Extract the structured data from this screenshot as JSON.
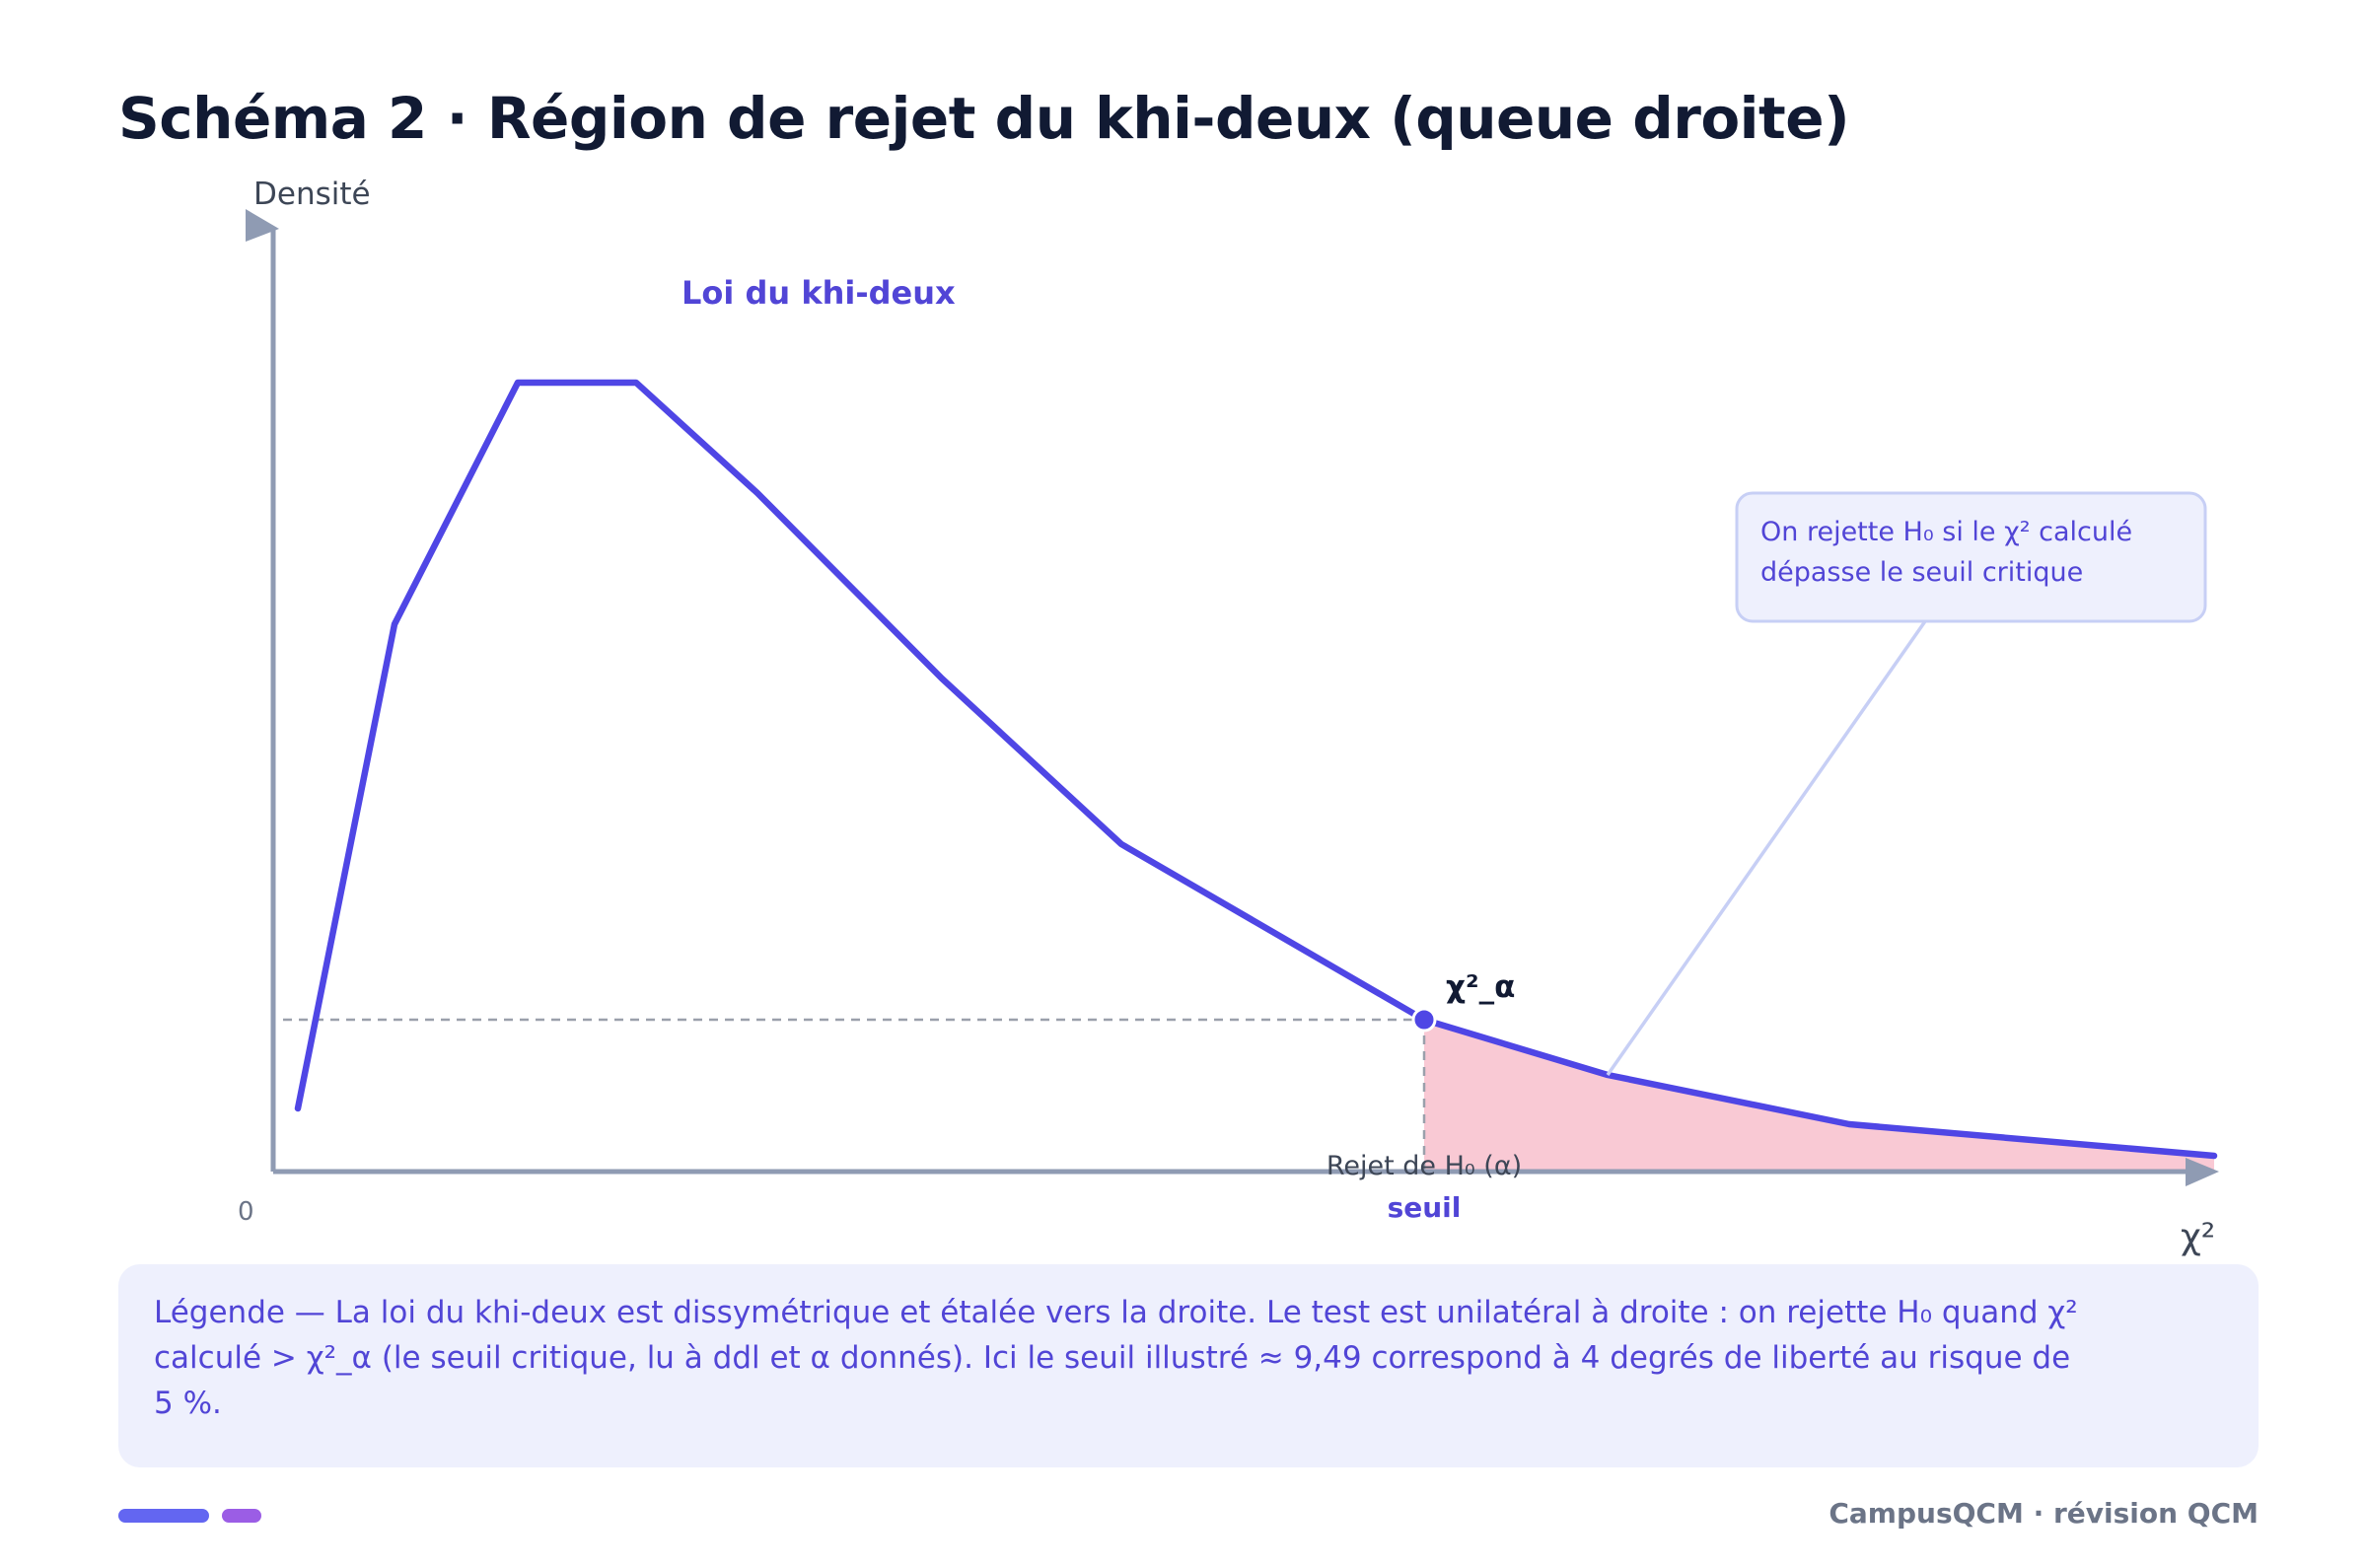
{
  "title": "Schéma 2 · Région de rejet du khi-deux (queue droite)",
  "axes": {
    "y_label": "Densité",
    "x_label": "χ²",
    "origin": "0"
  },
  "curve_label": "Loi du khi-deux",
  "critical": {
    "label": "χ²_α",
    "seuil": "seuil",
    "region": "Rejet de H₀ (α)"
  },
  "callout": {
    "line1": "On rejette H₀ si le χ² calculé",
    "line2": "dépasse le seuil critique"
  },
  "legend": "Légende — La loi du khi-deux est dissymétrique et étalée vers la droite. Le test est unilatéral à droite : on rejette H₀ quand χ² calculé > χ²_α (le seuil critique, lu à ddl et α donnés). Ici le seuil illustré ≈ 9,49 correspond à 4 degrés de liberté au risque de 5 %.",
  "footer": "CampusQCM · révision QCM",
  "colors": {
    "curve": "#4f46e5",
    "rejection": "#f9c9d4",
    "axis": "#8f9bb3",
    "callout_border": "#c7cff5",
    "callout_bg": "#eef0fd",
    "title": "#111a33"
  }
}
